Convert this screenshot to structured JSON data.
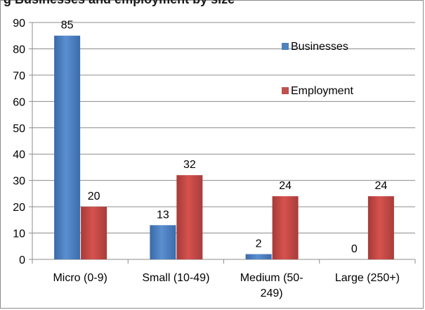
{
  "chart_data": {
    "type": "bar",
    "title": "g Businesses and employment by size",
    "categories": [
      "Micro (0-9)",
      "Small (10-49)",
      "Medium (50-249)",
      "Large (250+)"
    ],
    "category_label_lines": [
      [
        "Micro (0-9)"
      ],
      [
        "Small (10-49)"
      ],
      [
        "Medium (50-",
        "249)"
      ],
      [
        "Large (250+)"
      ]
    ],
    "series": [
      {
        "name": "Businesses",
        "values": [
          85,
          13,
          2,
          0
        ],
        "color": "#4f81bd"
      },
      {
        "name": "Employment",
        "values": [
          20,
          32,
          24,
          24
        ],
        "color": "#c0504d"
      }
    ],
    "ylim": [
      0,
      90
    ],
    "yticks": [
      0,
      10,
      20,
      30,
      40,
      50,
      60,
      70,
      80,
      90
    ],
    "grid": true,
    "legend_position": "right"
  }
}
